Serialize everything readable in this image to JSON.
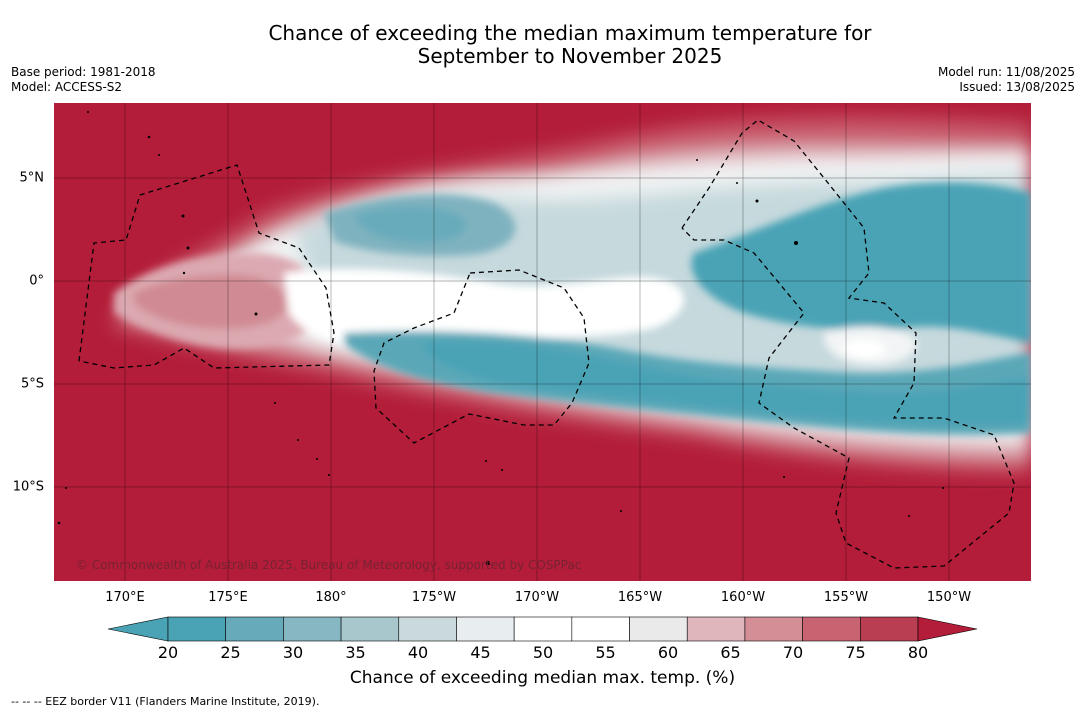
{
  "title_line1": "Chance of exceeding the median maximum temperature for",
  "title_line2": "September to November 2025",
  "meta_left": [
    "Base period: 1981-2018",
    "Model: ACCESS-S2"
  ],
  "meta_right": [
    "Model run: 11/08/2025",
    "Issued: 13/08/2025"
  ],
  "copyright": "© Commonwealth of Australia 2025, Bureau of Meteorology, supported by COSPPac",
  "lon_labels": [
    "170°E",
    "175°E",
    "180°",
    "175°W",
    "170°W",
    "165°W",
    "160°W",
    "155°W",
    "150°W"
  ],
  "lat_labels": [
    "5°N",
    "0°",
    "5°S",
    "10°S"
  ],
  "colorbar": {
    "ticks": [
      "20",
      "25",
      "30",
      "35",
      "40",
      "45",
      "50",
      "55",
      "60",
      "65",
      "70",
      "75",
      "80"
    ],
    "colors": [
      "#4aa3b5",
      "#67abbb",
      "#87b7c3",
      "#a8c7cd",
      "#c9d9dc",
      "#e8eef0",
      "#ffffff",
      "#ffffff",
      "#eaeaea",
      "#dfb6bc",
      "#d38e96",
      "#c86472",
      "#b93e52"
    ],
    "low_color": "#4aa3b5",
    "high_color": "#b31d39",
    "label": "Chance of exceeding median max. temp. (%)"
  },
  "footnote": "--  --  -- EEZ border V11 (Flanders Marine Institute, 2019)."
}
